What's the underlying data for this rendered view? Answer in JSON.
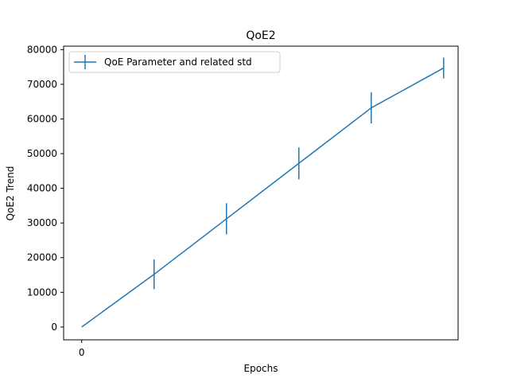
{
  "chart_data": {
    "type": "line",
    "title": "QoE2",
    "xlabel": "Epochs",
    "ylabel": "QoE2 Trend",
    "x": [
      0,
      1,
      2,
      3,
      4,
      5
    ],
    "x_tick_values": [
      0
    ],
    "x_tick_labels": [
      "0"
    ],
    "xlim": [
      -0.25,
      5.2
    ],
    "ylim": [
      -3700,
      81000
    ],
    "y_ticks": [
      0,
      10000,
      20000,
      30000,
      40000,
      50000,
      60000,
      70000,
      80000
    ],
    "y_tick_labels": [
      "0",
      "10000",
      "20000",
      "30000",
      "40000",
      "50000",
      "60000",
      "70000",
      "80000"
    ],
    "series": [
      {
        "name": "QoE Parameter and related std",
        "values": [
          0,
          15200,
          31200,
          47200,
          63200,
          74700
        ],
        "std": [
          0,
          4300,
          4500,
          4600,
          4500,
          3000
        ],
        "color": "#1f77b4"
      }
    ],
    "legend_position": "top-left",
    "grid": false
  }
}
